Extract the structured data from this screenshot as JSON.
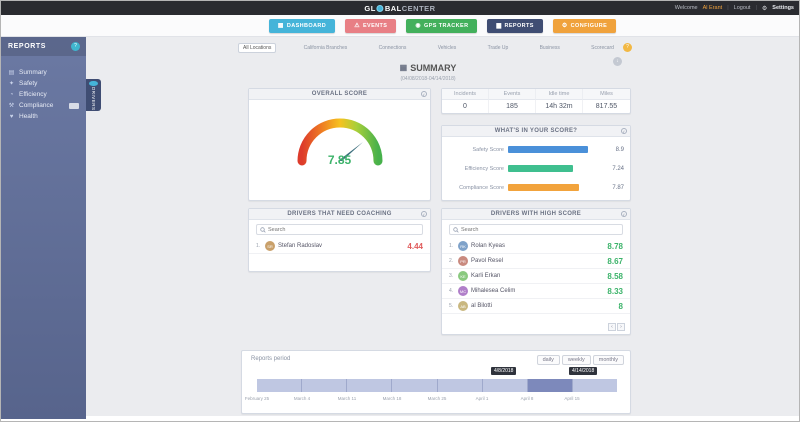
{
  "colors": {
    "score_positive": "#3cb36a",
    "score_negative": "#e05c5c",
    "gauge_value": "#3cb36a",
    "timeline_selected": "#7d89bb"
  },
  "topbar": {
    "logo_prefix": "GL",
    "logo_mid": "BAL",
    "logo_suffix": "CENTER",
    "welcome": "Welcome",
    "user": "Al Erant",
    "logout": "Logout",
    "settings": "Settings"
  },
  "nav": {
    "items": [
      {
        "label": "DASHBOARD",
        "color": "#45b4d9",
        "icon": "▦"
      },
      {
        "label": "EVENTS",
        "color": "#e87f85",
        "icon": "⚠"
      },
      {
        "label": "GPS TRACKER",
        "color": "#43b05c",
        "icon": "◉"
      },
      {
        "label": "REPORTS",
        "color": "#3f4d73",
        "icon": "▆"
      },
      {
        "label": "CONFIGURE",
        "color": "#f0a23c",
        "icon": "⚙"
      }
    ]
  },
  "sidebar": {
    "title": "REPORTS",
    "help": "?",
    "items": [
      {
        "label": "Summary",
        "icon": "▤"
      },
      {
        "label": "Safety",
        "icon": "✦"
      },
      {
        "label": "Efficiency",
        "icon": "◔"
      },
      {
        "label": "Compliance",
        "icon": "⚒"
      },
      {
        "label": "Health",
        "icon": "♥"
      }
    ],
    "drivers_tab": "DRIVERS"
  },
  "tabs": {
    "items": [
      {
        "label": "All Locations"
      },
      {
        "label": "California Branches"
      },
      {
        "label": "Connections"
      },
      {
        "label": "Vehicles"
      },
      {
        "label": "Trade Up"
      },
      {
        "label": "Business"
      },
      {
        "label": "Scorecard"
      }
    ],
    "help": "?"
  },
  "summary": {
    "title": "SUMMARY",
    "date_range": "(04/08/2018-04/14/2018)"
  },
  "overall": {
    "header": "OVERALL SCORE",
    "value": "7.85"
  },
  "stats": {
    "columns": [
      {
        "label": "Incidents",
        "value": "0"
      },
      {
        "label": "Events",
        "value": "185"
      },
      {
        "label": "Idle time",
        "value": "14h 32m"
      },
      {
        "label": "Miles",
        "value": "817.55"
      }
    ]
  },
  "breakdown": {
    "header": "WHAT'S IN YOUR SCORE?",
    "rows": [
      {
        "label": "Safety Score",
        "value": "8.9",
        "color": "#4a90d9"
      },
      {
        "label": "Efficiency Score",
        "value": "7.24",
        "color": "#3fbf8f"
      },
      {
        "label": "Compliance Score",
        "value": "7.87",
        "color": "#f2a33c"
      }
    ]
  },
  "coaching": {
    "header": "DRIVERS THAT NEED COACHING",
    "search_placeholder": "Search",
    "rows": [
      {
        "rank": "1.",
        "name": "Stefan Radoslav",
        "initials": "SR",
        "avatar_color": "#c9a06a",
        "score": "4.44"
      }
    ]
  },
  "highscore": {
    "header": "DRIVERS WITH HIGH SCORE",
    "search_placeholder": "Search",
    "rows": [
      {
        "rank": "1.",
        "name": "Rolan Kyeas",
        "initials": "RK",
        "avatar_color": "#7fa2c9",
        "score": "8.78"
      },
      {
        "rank": "2.",
        "name": "Pavol Resel",
        "initials": "PR",
        "avatar_color": "#c98a7f",
        "score": "8.67"
      },
      {
        "rank": "3.",
        "name": "Karli Erkan",
        "initials": "KE",
        "avatar_color": "#8ac97f",
        "score": "8.58"
      },
      {
        "rank": "4.",
        "name": "Mihalesea Celim",
        "initials": "MC",
        "avatar_color": "#b07fc9",
        "score": "8.33"
      },
      {
        "rank": "5.",
        "name": "al Bilotti",
        "initials": "AB",
        "avatar_color": "#c9b77f",
        "score": "8"
      }
    ],
    "pagination": {
      "prev": "‹",
      "next": "›"
    }
  },
  "period": {
    "label": "Reports period",
    "buttons": [
      {
        "label": "daily"
      },
      {
        "label": "weekly"
      },
      {
        "label": "monthly"
      }
    ],
    "range_start": "4/8/2018",
    "range_end": "4/14/2018",
    "axis": [
      {
        "label": "February 25"
      },
      {
        "label": "March 4"
      },
      {
        "label": "March 11"
      },
      {
        "label": "March 18"
      },
      {
        "label": "March 25"
      },
      {
        "label": "April 1"
      },
      {
        "label": "April 8"
      },
      {
        "label": "April 15"
      }
    ]
  }
}
